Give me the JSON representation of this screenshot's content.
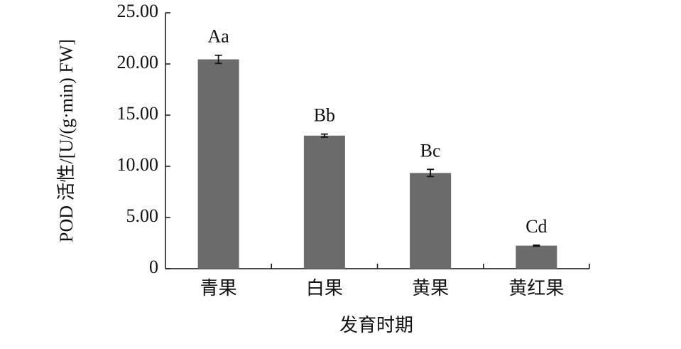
{
  "chart_data": {
    "type": "bar",
    "categories": [
      "青果",
      "白果",
      "黄果",
      "黄红果"
    ],
    "values": [
      20.45,
      13.0,
      9.35,
      2.25
    ],
    "errors": [
      0.4,
      0.15,
      0.35,
      0.05
    ],
    "labels": [
      "Aa",
      "Bb",
      "Bc",
      "Cd"
    ],
    "color": "#6b6b6b",
    "xlabel": "发育时期",
    "ylabel": "POD 活性/[U/(g·min) FW]",
    "ylim": [
      0,
      25
    ],
    "yticks": [
      0,
      {
        "value": 5,
        "label": "5.00"
      },
      {
        "value": 10,
        "label": "10.00"
      },
      {
        "value": 15,
        "label": "15.00"
      },
      {
        "value": 20,
        "label": "20.00"
      },
      {
        "value": 25,
        "label": "25.00"
      }
    ]
  }
}
